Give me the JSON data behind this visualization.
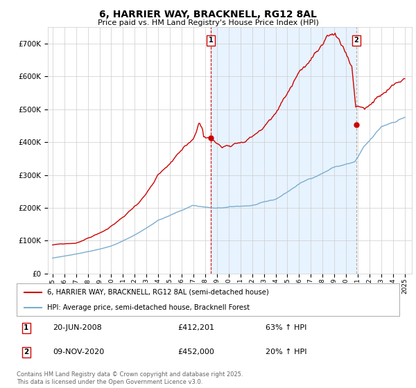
{
  "title": "6, HARRIER WAY, BRACKNELL, RG12 8AL",
  "subtitle": "Price paid vs. HM Land Registry's House Price Index (HPI)",
  "background_color": "#ffffff",
  "plot_bg_color": "#ffffff",
  "grid_color": "#cccccc",
  "line1_color": "#cc0000",
  "line2_color": "#7aadcf",
  "shade_color": "#ddeeff",
  "marker1_x": 2008.47,
  "marker2_x": 2020.86,
  "marker1_y_red": 412201,
  "marker2_y_red": 452000,
  "legend_line1": "6, HARRIER WAY, BRACKNELL, RG12 8AL (semi-detached house)",
  "legend_line2": "HPI: Average price, semi-detached house, Bracknell Forest",
  "footer": "Contains HM Land Registry data © Crown copyright and database right 2025.\nThis data is licensed under the Open Government Licence v3.0.",
  "ylim": [
    0,
    750000
  ],
  "yticks": [
    0,
    100000,
    200000,
    300000,
    400000,
    500000,
    600000,
    700000
  ],
  "ytick_labels": [
    "£0",
    "£100K",
    "£200K",
    "£300K",
    "£400K",
    "£500K",
    "£600K",
    "£700K"
  ],
  "xlim_left": 1994.6,
  "xlim_right": 2025.6,
  "ann1_date": "20-JUN-2008",
  "ann1_price": "£412,201",
  "ann1_hpi": "63% ↑ HPI",
  "ann2_date": "09-NOV-2020",
  "ann2_price": "£452,000",
  "ann2_hpi": "20% ↑ HPI"
}
